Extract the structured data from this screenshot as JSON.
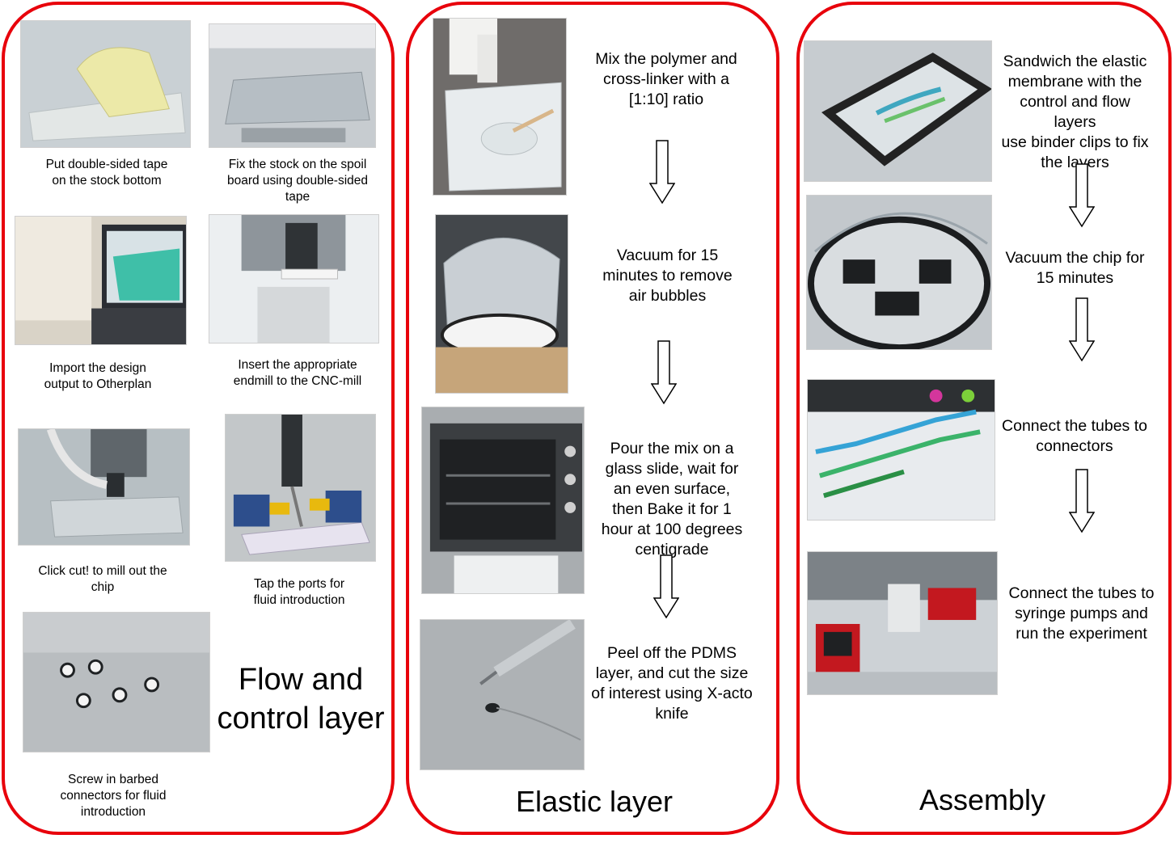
{
  "colors": {
    "panel_border": "#e8000b"
  },
  "flow_and_control_layer": {
    "title": "Flow and\ncontrol layer",
    "steps": [
      {
        "caption": "Put double-sided tape\non the stock bottom",
        "photo": "tape-on-stock-photo"
      },
      {
        "caption": "Fix the stock on the spoil\nboard using double-sided\ntape",
        "photo": "stock-on-spoilboard-photo"
      },
      {
        "caption": "Import the design\noutput to Otherplan",
        "photo": "laptop-otherplan-photo"
      },
      {
        "caption": "Insert the appropriate\nendmill to the CNC-mill",
        "photo": "endmill-photo"
      },
      {
        "caption": "Click cut! to mill out the\nchip",
        "photo": "milling-chip-photo"
      },
      {
        "caption": "Tap the ports for\nfluid introduction",
        "photo": "tapping-ports-photo"
      },
      {
        "caption": "Screw in barbed\nconnectors  for fluid\nintroduction",
        "photo": "barbed-connectors-photo"
      }
    ]
  },
  "elastic_layer": {
    "title": "Elastic layer",
    "steps": [
      {
        "text": "Mix the polymer and\ncross-linker with a\n[1:10] ratio",
        "photo": "polymer-mixing-photo"
      },
      {
        "text": "Vacuum for 15\nminutes to remove\nair bubbles",
        "photo": "vacuum-chamber-photo"
      },
      {
        "text": "Pour the mix on a\nglass slide, wait for\nan even surface,\nthen Bake it for 1\nhour at 100 degrees\ncentigrade",
        "photo": "oven-photo"
      },
      {
        "text": "Peel off the PDMS\nlayer, and cut the size\nof interest using X-acto\nknife",
        "photo": "xacto-knife-photo"
      }
    ]
  },
  "assembly": {
    "title": "Assembly",
    "steps": [
      {
        "text": "Sandwich the elastic\nmembrane with the\ncontrol and flow\nlayers\nuse binder clips to fix\nthe layers",
        "photo": "binder-clips-photo"
      },
      {
        "text": "Vacuum the chip for\n15 minutes",
        "photo": "chip-vacuum-photo"
      },
      {
        "text": "Connect the tubes to\nconnectors",
        "photo": "tubes-connectors-photo"
      },
      {
        "text": "Connect the tubes to\nsyringe pumps and\nrun the experiment",
        "photo": "syringe-pumps-photo"
      }
    ]
  }
}
